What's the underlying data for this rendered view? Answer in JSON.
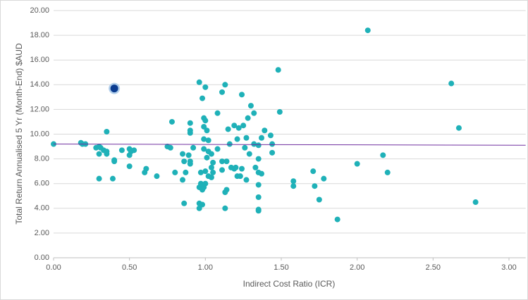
{
  "chart_data": {
    "type": "scatter",
    "x_label": "Indirect Cost Ratio (ICR)",
    "y_label": "Total Return Annualised 5 Yr (Month-End) $AUD",
    "xlim": [
      0,
      3.11
    ],
    "ylim": [
      0,
      20
    ],
    "grid": true,
    "xticks": [
      {
        "value": 0,
        "label": "0.00"
      },
      {
        "value": 0.5,
        "label": "0.50"
      },
      {
        "value": 1,
        "label": "1.00"
      },
      {
        "value": 1.5,
        "label": "1.50"
      },
      {
        "value": 2,
        "label": "2.00"
      },
      {
        "value": 2.5,
        "label": "2.50"
      },
      {
        "value": 3,
        "label": "3.00"
      }
    ],
    "yticks": [
      {
        "value": 0,
        "label": "0.00"
      },
      {
        "value": 2,
        "label": "2.00"
      },
      {
        "value": 4,
        "label": "4.00"
      },
      {
        "value": 6,
        "label": "6.00"
      },
      {
        "value": 8,
        "label": "8.00"
      },
      {
        "value": 10,
        "label": "10.00"
      },
      {
        "value": 12,
        "label": "12.00"
      },
      {
        "value": 14,
        "label": "14.00"
      },
      {
        "value": 16,
        "label": "16.00"
      },
      {
        "value": 18,
        "label": "18.00"
      },
      {
        "value": 20,
        "label": "20.00"
      }
    ],
    "series": [
      {
        "color": "#1fb1b8",
        "x": [
          0.0,
          0.18,
          0.19,
          0.21,
          0.28,
          0.3,
          0.31,
          0.3,
          0.33,
          0.35,
          0.35,
          0.35,
          0.3,
          0.4,
          0.4,
          0.39,
          0.45,
          0.5,
          0.51,
          0.5,
          0.53,
          0.5,
          0.61,
          0.6,
          0.68,
          0.75,
          0.77,
          0.78,
          0.8,
          0.85,
          0.86,
          0.85,
          0.86,
          0.87,
          0.89,
          0.9,
          0.9,
          0.9,
          0.9,
          0.9,
          0.92,
          0.96,
          0.96,
          0.96,
          0.96,
          0.98,
          0.97,
          0.97,
          0.98,
          0.99,
          0.99,
          0.99,
          0.99,
          0.98,
          1.0,
          1.0,
          1.0,
          1.01,
          1.01,
          1.02,
          1.02,
          1.02,
          1.04,
          1.04,
          1.05,
          1.05,
          1.04,
          1.0,
          0.99,
          1.08,
          1.08,
          1.11,
          1.11,
          1.13,
          1.13,
          1.11,
          1.14,
          1.13,
          1.14,
          1.15,
          1.16,
          1.17,
          1.19,
          1.19,
          1.2,
          1.21,
          1.21,
          1.22,
          1.23,
          1.24,
          1.24,
          1.25,
          1.26,
          1.27,
          1.28,
          1.27,
          1.29,
          1.3,
          1.32,
          1.32,
          1.33,
          1.35,
          1.35,
          1.35,
          1.35,
          1.35,
          1.35,
          1.35,
          1.37,
          1.37,
          1.39,
          1.43,
          1.44,
          1.44,
          1.48,
          1.49,
          1.58,
          1.58,
          1.71,
          1.72,
          1.75,
          1.78,
          1.87,
          2.0,
          2.07,
          2.17,
          2.2,
          2.62,
          2.67,
          2.78
        ],
        "values": [
          9.2,
          9.3,
          9.2,
          9.2,
          8.9,
          9.0,
          8.9,
          8.4,
          8.7,
          8.6,
          10.2,
          8.4,
          6.4,
          7.9,
          7.8,
          6.4,
          8.7,
          8.8,
          8.6,
          8.3,
          8.7,
          7.4,
          7.2,
          6.9,
          6.6,
          9.0,
          8.9,
          11.0,
          6.9,
          8.4,
          7.8,
          6.3,
          4.4,
          6.9,
          8.3,
          10.9,
          10.3,
          10.1,
          7.6,
          7.8,
          8.9,
          14.2,
          5.7,
          4.4,
          4.0,
          4.3,
          6.9,
          6.0,
          5.5,
          10.6,
          9.6,
          8.8,
          11.3,
          12.9,
          13.8,
          11.1,
          7.0,
          8.1,
          10.3,
          9.5,
          8.6,
          6.6,
          8.4,
          7.3,
          6.9,
          7.7,
          6.5,
          6.0,
          5.7,
          11.7,
          8.8,
          7.8,
          13.4,
          14.0,
          4.0,
          7.1,
          7.8,
          5.3,
          5.5,
          10.4,
          9.2,
          7.3,
          7.2,
          10.7,
          7.3,
          9.6,
          6.6,
          10.5,
          6.6,
          7.2,
          13.2,
          10.7,
          8.9,
          9.7,
          11.3,
          6.3,
          8.4,
          12.3,
          11.7,
          9.2,
          7.3,
          9.1,
          6.9,
          5.9,
          4.9,
          3.9,
          3.8,
          8.0,
          9.7,
          6.8,
          10.3,
          9.9,
          9.2,
          8.5,
          15.2,
          11.8,
          6.2,
          5.8,
          7.0,
          5.8,
          4.7,
          6.4,
          3.1,
          7.6,
          18.4,
          8.3,
          6.9,
          14.1,
          10.5,
          4.5
        ]
      },
      {
        "color": "#0b3c91",
        "x": [
          0.4
        ],
        "values": [
          13.7
        ]
      }
    ],
    "trendline": {
      "color": "#7030a0",
      "x": [
        0,
        3.11
      ],
      "values": [
        9.2,
        9.1
      ]
    }
  }
}
